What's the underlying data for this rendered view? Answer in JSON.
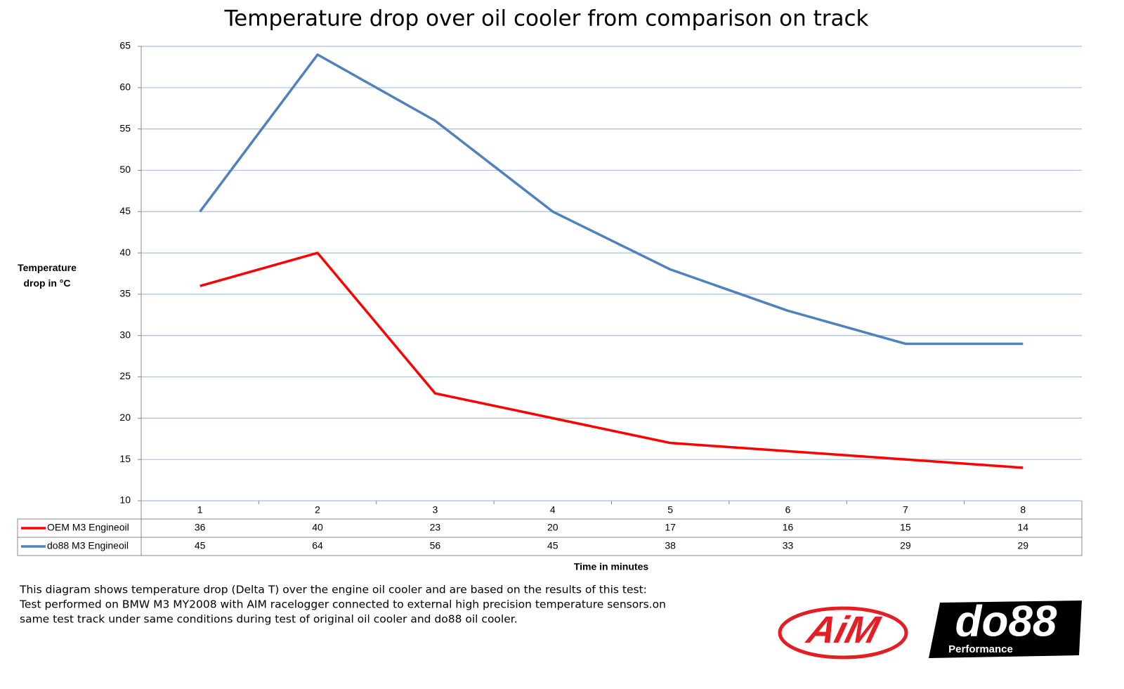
{
  "chart_data": {
    "type": "line",
    "title": "Temperature drop over oil cooler from comparison on track",
    "y_label": "Temperature drop in °C",
    "x_label": "Time in minutes",
    "categories": [
      "1",
      "2",
      "3",
      "4",
      "5",
      "6",
      "7",
      "8"
    ],
    "series": [
      {
        "name": "OEM M3 Engineoil",
        "color": "#ff0000",
        "values": [
          36,
          40,
          23,
          20,
          17,
          16,
          15,
          14
        ]
      },
      {
        "name": "do88 M3 Engineoil",
        "color": "#4f81bd",
        "values": [
          45,
          64,
          56,
          45,
          38,
          33,
          29,
          29
        ]
      }
    ],
    "ylim": [
      10,
      65
    ],
    "yticks": [
      10,
      15,
      20,
      25,
      30,
      35,
      40,
      45,
      50,
      55,
      60,
      65
    ],
    "grid": true,
    "footnote": [
      "This diagram shows temperature drop (Delta T) over the engine oil cooler and are based on the results of this test:",
      "Test performed on BMW M3 MY2008 with AIM racelogger connected to external high precision temperature sensors.on",
      "same test track under same conditions during test of original oil cooler and do88 oil cooler."
    ],
    "logos": [
      "AiM",
      "do88",
      "Performance"
    ]
  }
}
